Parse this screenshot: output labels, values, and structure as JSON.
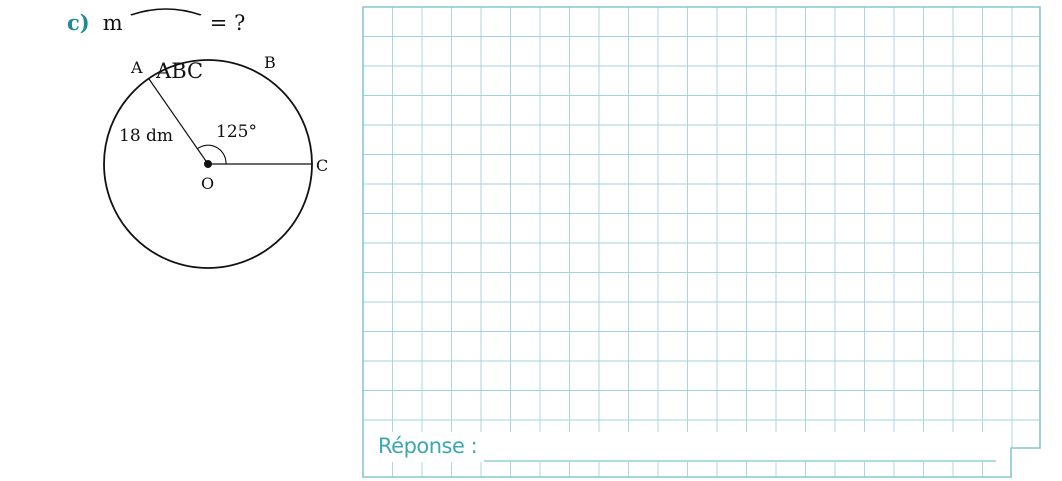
{
  "question": {
    "letter": "c)",
    "prefix": "m",
    "arc": "ABC",
    "suffix": "= ?"
  },
  "figure": {
    "point_labels": {
      "A": "A",
      "B": "B",
      "C": "C",
      "O": "O"
    },
    "radius_label": "18 dm",
    "angle_label": "125°",
    "angle_degrees": 125
  },
  "answer": {
    "label": "Réponse :"
  },
  "colors": {
    "accent": "#1d8a96",
    "grid": "#9fd3de",
    "answer_text": "#3aa7b5"
  }
}
